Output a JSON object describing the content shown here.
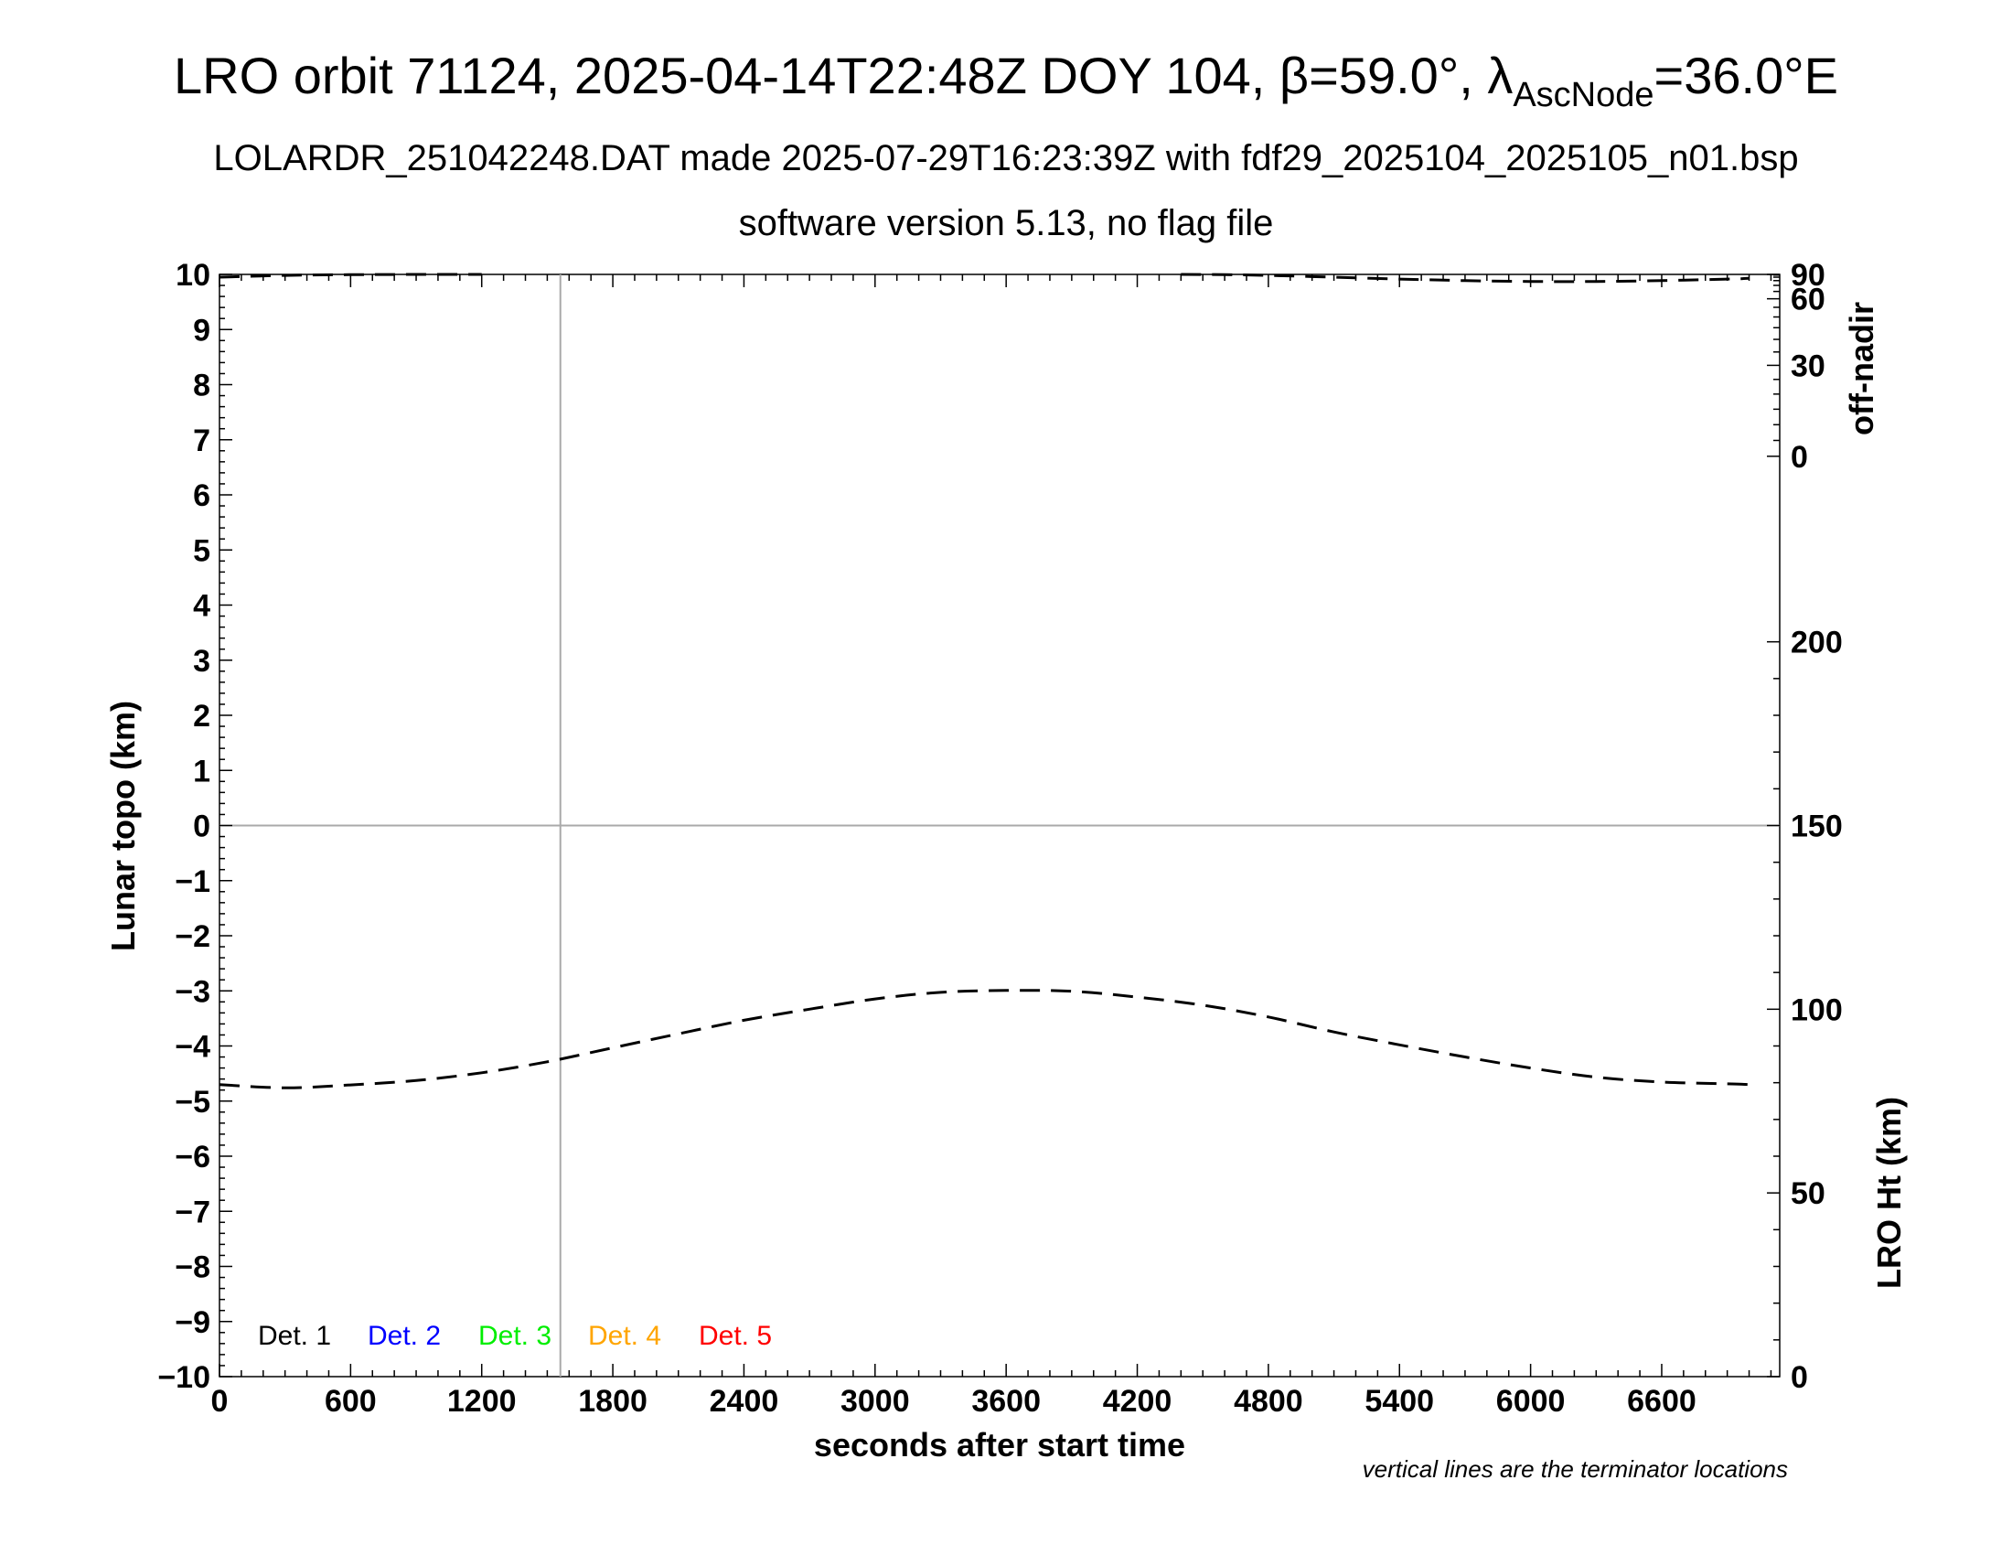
{
  "header": {
    "title_main": "LRO orbit 71124, 2025-04-14T22:48Z DOY 104, β=59.0°, λ",
    "title_sub": "AscNode",
    "title_tail": "=36.0°E",
    "subtitle1": "LOLARDR_251042248.DAT made 2025-07-29T16:23:39Z with fdf29_2025104_2025105_n01.bsp",
    "subtitle2": "software version 5.13, no flag file"
  },
  "footnote": "vertical lines are the terminator locations",
  "chart_data": {
    "type": "line",
    "xlabel": "seconds after start time",
    "ylabel": "Lunar topo (km)",
    "y2label_top": "off-nadir",
    "y2label_bottom": "LRO Ht (km)",
    "xlim": [
      0,
      7140
    ],
    "ylim": [
      -10,
      10
    ],
    "x_ticks": [
      0,
      600,
      1200,
      1800,
      2400,
      3000,
      3600,
      4200,
      4800,
      5400,
      6000,
      6600
    ],
    "y_ticks": [
      10,
      9,
      8,
      7,
      6,
      5,
      4,
      3,
      2,
      1,
      0,
      -1,
      -2,
      -3,
      -4,
      -5,
      -6,
      -7,
      -8,
      -9,
      -10
    ],
    "y_tick_labels": [
      "10",
      "9",
      "8",
      "7",
      "6",
      "5",
      "4",
      "3",
      "2",
      "1",
      "0",
      "−1",
      "−2",
      "−3",
      "−4",
      "−5",
      "−6",
      "−7",
      "−8",
      "−9",
      "−10"
    ],
    "off_nadir_ticks": [
      "90",
      "60",
      "30",
      "0"
    ],
    "off_nadir_values": [
      90,
      60,
      30,
      0
    ],
    "height_axis": {
      "range": [
        0,
        300
      ],
      "ticks": [
        200,
        150,
        100,
        50,
        0
      ]
    },
    "terminator_lines": [
      1560
    ],
    "zero_line": 0,
    "legend": [
      {
        "label": "Det. 1",
        "color": "#000000"
      },
      {
        "label": "Det. 2",
        "color": "#0000ff"
      },
      {
        "label": "Det. 3",
        "color": "#00ee00"
      },
      {
        "label": "Det. 4",
        "color": "#ffa500"
      },
      {
        "label": "Det. 5",
        "color": "#ff0000"
      }
    ],
    "series": [
      {
        "axis": "height",
        "style": "dashed",
        "x": [
          0,
          300,
          600,
          900,
          1200,
          1500,
          1800,
          2100,
          2400,
          2700,
          3000,
          3300,
          3600,
          3900,
          4200,
          4500,
          4800,
          5100,
          5400,
          5700,
          6000,
          6300,
          6600,
          6900,
          7000
        ],
        "y": [
          79.5,
          78.6,
          79.4,
          80.6,
          82.7,
          85.7,
          89.5,
          93.3,
          97.0,
          100.0,
          102.8,
          104.6,
          105.1,
          104.9,
          103.3,
          101.1,
          97.9,
          93.8,
          90.3,
          87.0,
          84.0,
          81.5,
          80.2,
          79.7,
          79.5
        ]
      },
      {
        "axis": "off_nadir",
        "style": "dashed",
        "x": [
          0,
          300,
          600,
          900,
          1200,
          4400,
          4600,
          4800,
          5100,
          5400,
          5700,
          6000,
          6300,
          6600,
          6900,
          7000
        ],
        "y": [
          80,
          84,
          87,
          89,
          90,
          90,
          87,
          84,
          80,
          77,
          75,
          74,
          74,
          75,
          77,
          78
        ]
      }
    ]
  }
}
